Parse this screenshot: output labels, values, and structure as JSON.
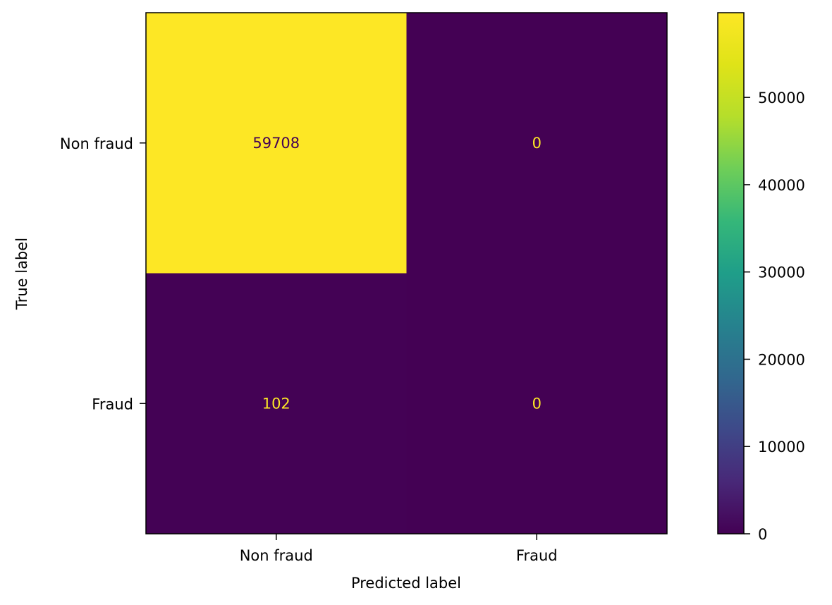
{
  "chart_data": {
    "type": "heatmap",
    "title": "",
    "xlabel": "Predicted label",
    "ylabel": "True label",
    "x_categories": [
      "Non fraud",
      "Fraud"
    ],
    "y_categories": [
      "Non fraud",
      "Fraud"
    ],
    "matrix": [
      [
        59708,
        0
      ],
      [
        102,
        0
      ]
    ],
    "colormap": "viridis",
    "colorbar": {
      "range": [
        0,
        59708
      ],
      "ticks": [
        0,
        10000,
        20000,
        30000,
        40000,
        50000
      ],
      "tick_labels": [
        "0",
        "10000",
        "20000",
        "30000",
        "40000",
        "50000"
      ]
    },
    "colors": {
      "low": "#440154",
      "high": "#fde725",
      "text_on_low": "#fde725",
      "text_on_high": "#440154"
    }
  }
}
